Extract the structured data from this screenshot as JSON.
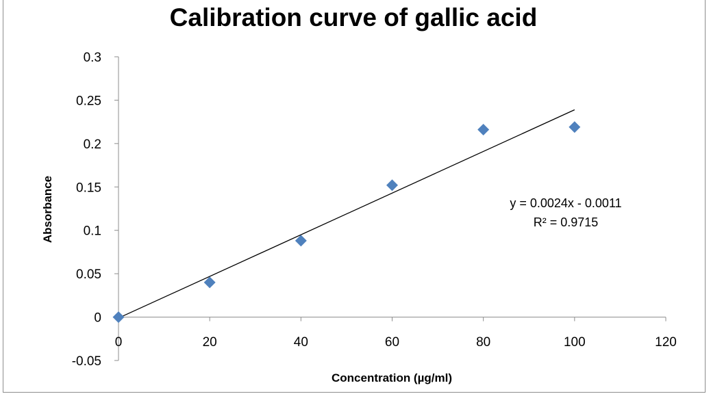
{
  "chart_data": {
    "type": "scatter",
    "title": "Calibration curve of gallic acid",
    "xlabel": "Concentration (µg/ml)",
    "ylabel": "Absorbance",
    "xlim": [
      0,
      120
    ],
    "ylim": [
      -0.05,
      0.3
    ],
    "x_ticks": [
      0,
      20,
      40,
      60,
      80,
      100,
      120
    ],
    "x_tick_labels": [
      "0",
      "20",
      "40",
      "60",
      "80",
      "100",
      "120"
    ],
    "y_ticks": [
      -0.05,
      0,
      0.05,
      0.1,
      0.15,
      0.2,
      0.25,
      0.3
    ],
    "y_tick_labels": [
      "-0.05",
      "0",
      "0.05",
      "0.1",
      "0.15",
      "0.2",
      "0.25",
      "0.3"
    ],
    "grid": false,
    "legend": "none",
    "series": [
      {
        "x": [
          0,
          20,
          40,
          60,
          80,
          100
        ],
        "y": [
          0,
          0.04,
          0.088,
          0.152,
          0.216,
          0.219
        ],
        "marker": "diamond",
        "color": "#4f81bd"
      }
    ],
    "trendline": {
      "type": "linear",
      "slope": 0.0024,
      "intercept": -0.0011,
      "x_range": [
        0,
        100
      ],
      "color": "#000000",
      "equation": "y = 0.0024x - 0.0011",
      "r_squared": "R² = 0.9715"
    }
  }
}
